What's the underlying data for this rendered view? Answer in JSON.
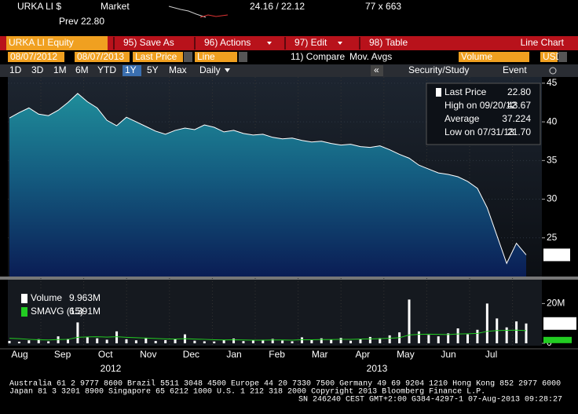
{
  "header": {
    "ticker": "URKA LI $",
    "market": "Market",
    "quote": "24.16 / 22.12",
    "size": "77 x 663",
    "prev_label": "Prev",
    "prev": "22.80"
  },
  "toolbar": {
    "security": "URKA LI Equity",
    "buttons": [
      "95) Save As",
      "96) Actions",
      "97) Edit",
      "98) Table"
    ],
    "view": "Line Chart"
  },
  "settings": {
    "start": "08/07/2012",
    "end": "08/07/2013",
    "field": "Last Price",
    "style": "Line",
    "compare": "11) Compare",
    "mov_avgs": "Mov. Avgs",
    "lower": "Volume",
    "currency": "USD"
  },
  "periods": [
    "1D",
    "3D",
    "1M",
    "6M",
    "YTD",
    "1Y",
    "5Y",
    "Max"
  ],
  "selected_period": "1Y",
  "frequency": "Daily",
  "tools": [
    "Security/Study",
    "Event"
  ],
  "chart_data": [
    {
      "type": "area",
      "color": "#ffffff",
      "values": [
        40.5,
        41.2,
        41.8,
        41.0,
        40.8,
        41.5,
        42.5,
        43.67,
        42.6,
        41.8,
        40.2,
        39.5,
        40.6,
        40.0,
        39.4,
        38.8,
        38.4,
        38.9,
        39.2,
        39.0,
        39.6,
        39.3,
        38.7,
        38.9,
        38.5,
        38.3,
        38.4,
        38.0,
        37.8,
        37.9,
        37.6,
        37.4,
        37.5,
        37.2,
        37.0,
        37.1,
        36.8,
        36.7,
        36.9,
        36.4,
        35.8,
        35.3,
        34.4,
        33.9,
        33.4,
        33.2,
        32.9,
        32.3,
        31.4,
        28.9,
        25.3,
        21.7,
        24.3,
        22.8
      ],
      "ylim": [
        20,
        45.8
      ],
      "yticks": [
        25,
        30,
        35,
        40,
        45
      ],
      "last_label": "22.80",
      "legend": [
        {
          "label": "Last Price",
          "value": "22.80"
        },
        {
          "label": "High on 09/20/12",
          "value": "43.67"
        },
        {
          "label": "Average",
          "value": "37.224"
        },
        {
          "label": "Low on 07/31/13",
          "value": "21.70"
        }
      ]
    },
    {
      "type": "bar",
      "series": [
        {
          "name": "Volume",
          "color": "#ffffff",
          "label": "9.963M",
          "values": [
            1.2,
            0.8,
            1.5,
            2.1,
            1.0,
            3.5,
            2.2,
            10.5,
            3.0,
            2.5,
            1.8,
            6.0,
            2.0,
            1.5,
            2.8,
            1.2,
            1.6,
            2.0,
            4.5,
            1.3,
            1.0,
            0.9,
            1.7,
            2.4,
            1.1,
            1.5,
            1.8,
            2.2,
            1.4,
            1.0,
            3.0,
            1.6,
            2.5,
            1.9,
            2.7,
            1.3,
            2.0,
            3.2,
            2.6,
            4.0,
            5.5,
            22.0,
            6.0,
            4.2,
            3.5,
            5.0,
            7.5,
            4.5,
            6.8,
            20.0,
            12.5,
            8.0,
            11.0,
            9.963
          ]
        },
        {
          "name": "SMAVG (15)",
          "color": "#22cc22",
          "label": "6.391M",
          "values": [
            2.5,
            2.3,
            2.0,
            1.8,
            1.7,
            1.9,
            2.0,
            3.0,
            3.2,
            3.3,
            3.1,
            3.3,
            3.0,
            2.8,
            2.6,
            2.4,
            2.2,
            2.1,
            2.3,
            2.1,
            2.0,
            1.8,
            1.7,
            1.8,
            1.7,
            1.6,
            1.6,
            1.7,
            1.7,
            1.6,
            1.8,
            1.8,
            1.9,
            1.9,
            2.0,
            2.0,
            2.1,
            2.2,
            2.3,
            2.5,
            2.8,
            4.2,
            4.5,
            4.6,
            4.5,
            4.4,
            4.7,
            4.8,
            5.0,
            6.0,
            6.4,
            6.5,
            6.6,
            6.391
          ]
        }
      ],
      "ylim": [
        0,
        32
      ],
      "yticks": [
        0,
        {
          "value": 20,
          "label": "20M"
        }
      ]
    }
  ],
  "months": [
    "Aug",
    "Sep",
    "Oct",
    "Nov",
    "Dec",
    "Jan",
    "Feb",
    "Mar",
    "Apr",
    "May",
    "Jun",
    "Jul"
  ],
  "years": [
    "2012",
    "2013"
  ],
  "footer": [
    "Australia 61 2 9777 8600 Brazil 5511 3048 4500 Europe 44 20 7330 7500 Germany 49 69 9204 1210 Hong Kong 852 2977 6000",
    "Japan 81 3 3201 8900         Singapore 65 6212 1000         U.S. 1 212 318 2000         Copyright 2013 Bloomberg Finance L.P.",
    "SN 246240 CEST GMT+2:00 G384-4297-1 07-Aug-2013 09:28:27"
  ]
}
